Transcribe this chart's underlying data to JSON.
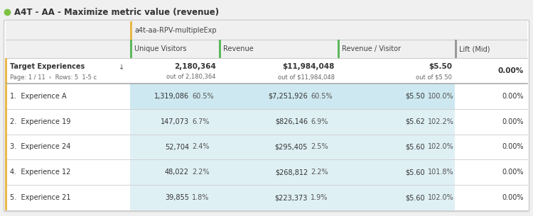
{
  "title": "A4T - AA - Maximize metric value (revenue)",
  "experiment_label": "a4t-aa-RPV-multipleExp",
  "columns": [
    "Unique Visitors",
    "Revenue",
    "Revenue / Visitor",
    "Lift (Mid)"
  ],
  "col_colors": [
    "#5cb85c",
    "#5cb85c",
    "#5cb85c",
    "#999999"
  ],
  "rows": [
    {
      "num": "1.",
      "name": "Experience A",
      "uv": "1,319,086",
      "uv_pct": "60.5%",
      "rev": "$7,251,926",
      "rev_pct": "60.5%",
      "rpv": "$5.50",
      "rpv_pct": "100.0%",
      "lift": "0.00%",
      "highlight": true
    },
    {
      "num": "2.",
      "name": "Experience 19",
      "uv": "147,073",
      "uv_pct": "6.7%",
      "rev": "$826,146",
      "rev_pct": "6.9%",
      "rpv": "$5.62",
      "rpv_pct": "102.2%",
      "lift": "0.00%",
      "highlight": false
    },
    {
      "num": "3.",
      "name": "Experience 24",
      "uv": "52,704",
      "uv_pct": "2.4%",
      "rev": "$295,405",
      "rev_pct": "2.5%",
      "rpv": "$5.60",
      "rpv_pct": "102.0%",
      "lift": "0.00%",
      "highlight": false
    },
    {
      "num": "4.",
      "name": "Experience 12",
      "uv": "48,022",
      "uv_pct": "2.2%",
      "rev": "$268,812",
      "rev_pct": "2.2%",
      "rpv": "$5.60",
      "rpv_pct": "101.8%",
      "lift": "0.00%",
      "highlight": false
    },
    {
      "num": "5.",
      "name": "Experience 21",
      "uv": "39,855",
      "uv_pct": "1.8%",
      "rev": "$223,373",
      "rev_pct": "1.9%",
      "rpv": "$5.60",
      "rpv_pct": "102.0%",
      "lift": "0.00%",
      "highlight": false
    }
  ],
  "bg_color": "#f0f0f0",
  "table_bg": "#ffffff",
  "header_bg": "#f0f0f0",
  "highlight_bg": "#cde8f0",
  "light_blue_bg": "#dff0f5",
  "border_color": "#cccccc",
  "title_color": "#333333",
  "green_dot_color": "#7dc242",
  "yellow_bar_color": "#e8b84b",
  "sum_uv_main": "2,180,364",
  "sum_uv_sub": "out of 2,180,364",
  "sum_rev_main": "$11,984,048",
  "sum_rev_sub": "out of $11,984,048",
  "sum_rpv_main": "$5.50",
  "sum_rpv_sub": "out of $5.50",
  "sum_lift": "0.00%",
  "page_label": "Page: 1 / 11  ›  Rows: 5  1-5 c"
}
